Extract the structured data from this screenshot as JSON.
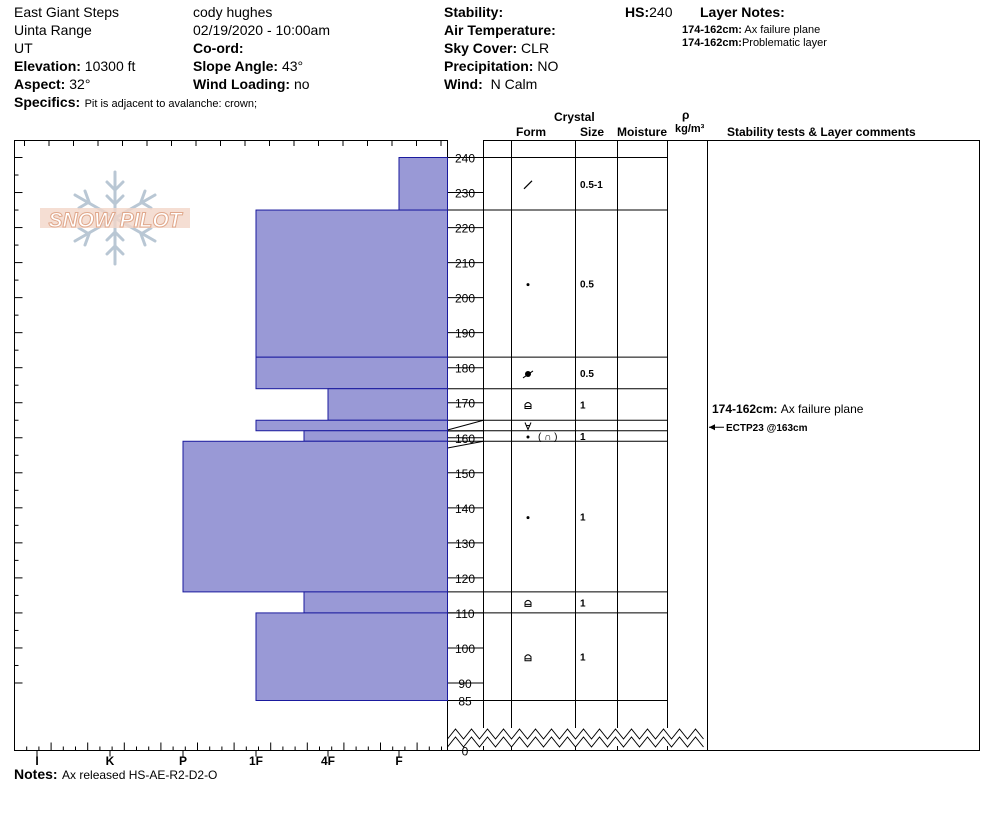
{
  "header": {
    "location": "East Giant Steps",
    "range": "Uinta Range",
    "state": "UT",
    "elevation_label": "Elevation:",
    "elevation_value": "10300 ft",
    "aspect_label": "Aspect:",
    "aspect_value": "32°",
    "observer": "cody hughes",
    "datetime": "02/19/2020 - 10:00am",
    "coord_label": "Co-ord:",
    "slope_label": "Slope Angle:",
    "slope_value": "43°",
    "wind_loading_label": "Wind Loading:",
    "wind_loading_value": "no",
    "stability_label": "Stability:",
    "air_temp_label": "Air Temperature:",
    "sky_label": "Sky Cover:",
    "sky_value": "CLR",
    "precip_label": "Precipitation:",
    "precip_value": "NO",
    "wind_label": "Wind:",
    "wind_value": "N Calm",
    "hs_label": "HS:",
    "hs_value": "240",
    "layer_notes_label": "Layer Notes:",
    "layer_notes": [
      {
        "range": "174-162cm:",
        "text": "Ax failure plane"
      },
      {
        "range": "174-162cm:",
        "text": "Problematic layer"
      }
    ],
    "specifics_label": "Specifics:",
    "specifics_value": "Pit is adjacent to avalanche: crown;"
  },
  "columns": {
    "crystal": "Crystal",
    "form": "Form",
    "size": "Size",
    "moisture": "Moisture",
    "rho": "ρ",
    "density_unit": "kg/m³",
    "stability": "Stability tests & Layer comments"
  },
  "logo_text": "SNOW PILOT",
  "notes_label": "Notes:",
  "notes_value": "Ax released HS-AE-R2-D2-O",
  "chart_data": {
    "type": "bar",
    "title": "",
    "ylabel": "",
    "ylim": [
      0,
      240
    ],
    "hardness_scale": [
      "I",
      "K",
      "P",
      "1F",
      "4F",
      "F"
    ],
    "height_ticks": [
      240,
      230,
      220,
      210,
      200,
      190,
      180,
      170,
      160,
      150,
      140,
      130,
      120,
      110,
      100,
      90,
      85,
      0
    ],
    "layers": [
      {
        "top": 240,
        "bottom": 225,
        "hardness": "F",
        "form": "decomposing",
        "size": "0.5-1"
      },
      {
        "top": 225,
        "bottom": 183,
        "hardness": "1F",
        "form": "rounds",
        "size": "0.5"
      },
      {
        "top": 183,
        "bottom": 174,
        "hardness": "1F",
        "form": "mixed",
        "size": "0.5"
      },
      {
        "top": 174,
        "bottom": 165,
        "hardness": "4F",
        "form": "facets",
        "size": "1"
      },
      {
        "top": 165,
        "bottom": 162,
        "hardness": "1F",
        "form": "depth hoar",
        "size": ""
      },
      {
        "top": 162,
        "bottom": 159,
        "hardness": "4F+",
        "form": "rounds (facets)",
        "size": "1"
      },
      {
        "top": 159,
        "bottom": 116,
        "hardness": "P",
        "form": "rounds",
        "size": "1"
      },
      {
        "top": 116,
        "bottom": 110,
        "hardness": "4F+",
        "form": "facets",
        "size": "1"
      },
      {
        "top": 110,
        "bottom": 85,
        "hardness": "1F",
        "form": "facets",
        "size": "1"
      }
    ],
    "layer_comments": [
      {
        "text": "174-162cm:",
        "detail": "Ax failure plane"
      }
    ],
    "stability_tests": [
      "ECTP23 @163cm"
    ]
  }
}
